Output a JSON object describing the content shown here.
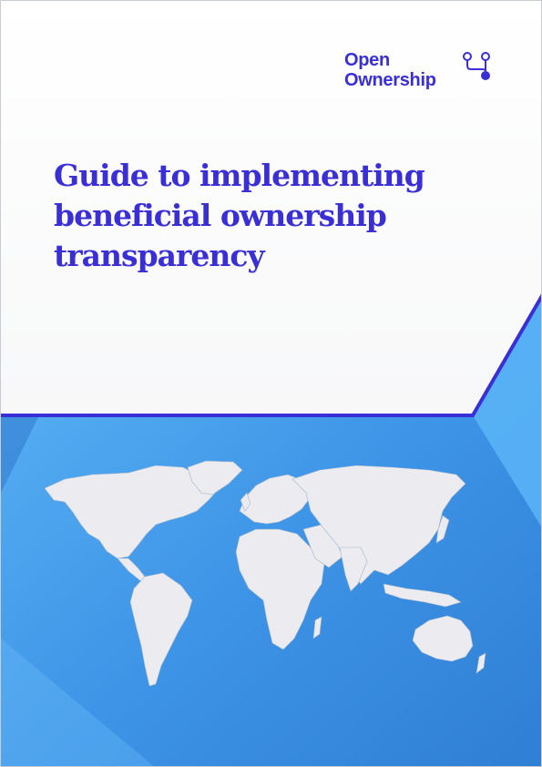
{
  "brand": {
    "line1": "Open",
    "line2": "Ownership"
  },
  "document": {
    "title_lines": [
      "Guide to implementing",
      "beneficial ownership",
      "transparency"
    ]
  },
  "colors": {
    "brand_purple": "#3a2fd6",
    "band_blue": "#3d93e6",
    "map_land": "#ececf0"
  },
  "icons": {
    "logo": "ownership-graph-icon",
    "illustration": "world-map"
  }
}
